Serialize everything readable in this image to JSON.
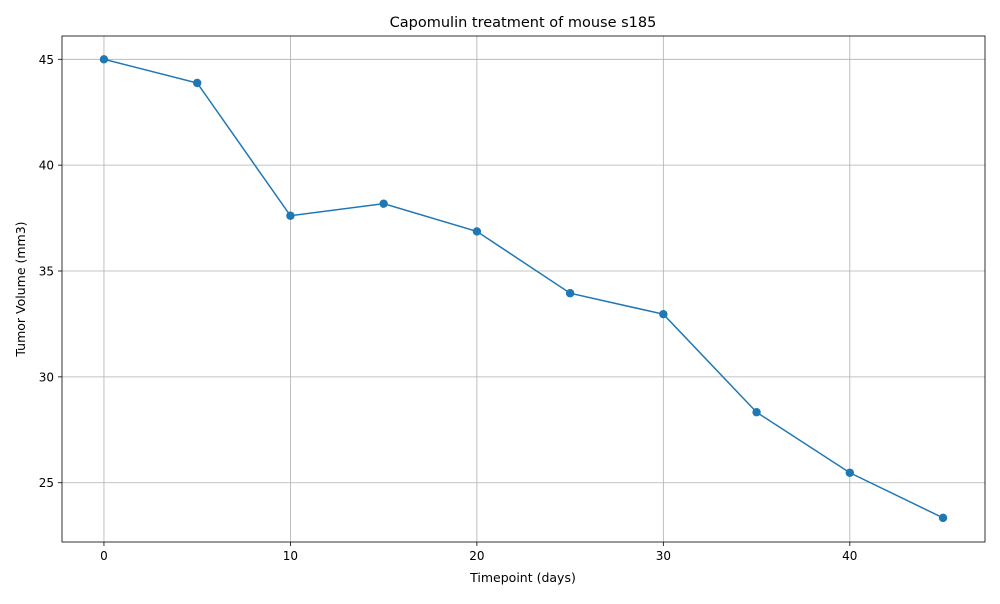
{
  "chart_data": {
    "type": "line",
    "title": "Capomulin treatment of mouse s185",
    "xlabel": "Timepoint (days)",
    "ylabel": "Tumor Volume (mm3)",
    "xlim": [
      -2.25,
      47.25
    ],
    "ylim": [
      22.2,
      46.1
    ],
    "xticks": [
      0,
      10,
      20,
      30,
      40
    ],
    "yticks": [
      25,
      30,
      35,
      40,
      45
    ],
    "grid": true,
    "marker": "circle",
    "line_color": "#1f77b4",
    "series": [
      {
        "x": [
          0,
          5,
          10,
          15,
          20,
          25,
          30,
          35,
          40,
          45
        ],
        "y": [
          45.0,
          43.88,
          37.61,
          38.18,
          36.87,
          33.95,
          32.96,
          28.33,
          25.47,
          23.34
        ]
      }
    ]
  }
}
